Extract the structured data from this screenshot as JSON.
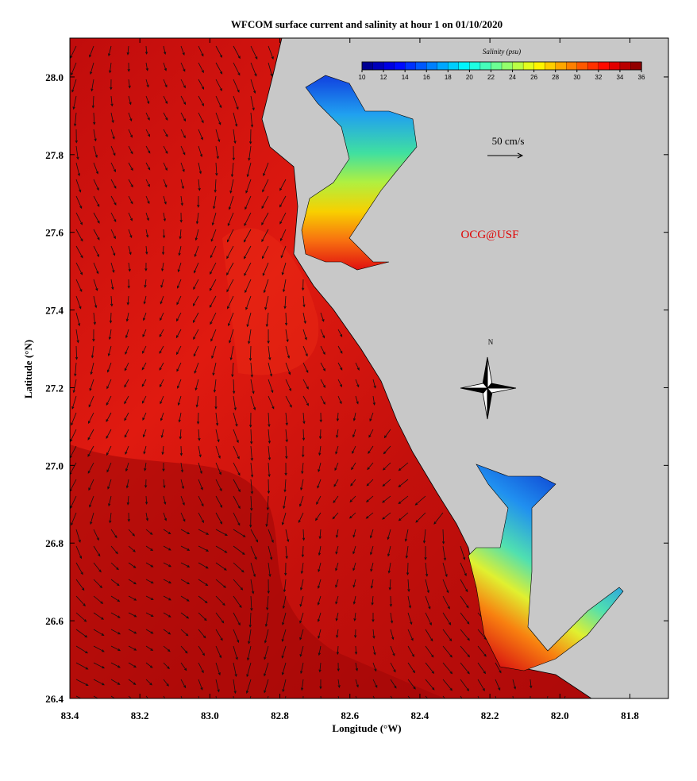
{
  "chart_data": {
    "type": "map",
    "title": "WFCOM surface current and salinity at hour 1 on 01/10/2020",
    "x_label": "Longitude (°W)",
    "y_label": "Latitude (°N)",
    "xlim": [
      83.4,
      81.69
    ],
    "ylim": [
      26.4,
      28.1
    ],
    "xticks": [
      83.4,
      83.2,
      {
        "value": 83,
        "label": "83.0"
      },
      82.8,
      82.6,
      82.4,
      82.2,
      {
        "value": 82,
        "label": "82.0"
      },
      81.8
    ],
    "yticks": [
      {
        "value": 26.4,
        "label": "26.4"
      },
      26.6,
      26.8,
      {
        "value": 27,
        "label": "27.0"
      },
      27.2,
      27.4,
      27.6,
      27.8,
      {
        "value": 28,
        "label": "28.0"
      }
    ],
    "colorbar": {
      "label": "Salinity (psu)",
      "lim": [
        10,
        36
      ],
      "ticks": [
        10,
        12,
        14,
        16,
        18,
        20,
        22,
        24,
        26,
        28,
        30,
        32,
        34,
        36
      ]
    },
    "scale_label": "50 cm/s",
    "credit": "OCG@USF",
    "compass_label": "N"
  }
}
